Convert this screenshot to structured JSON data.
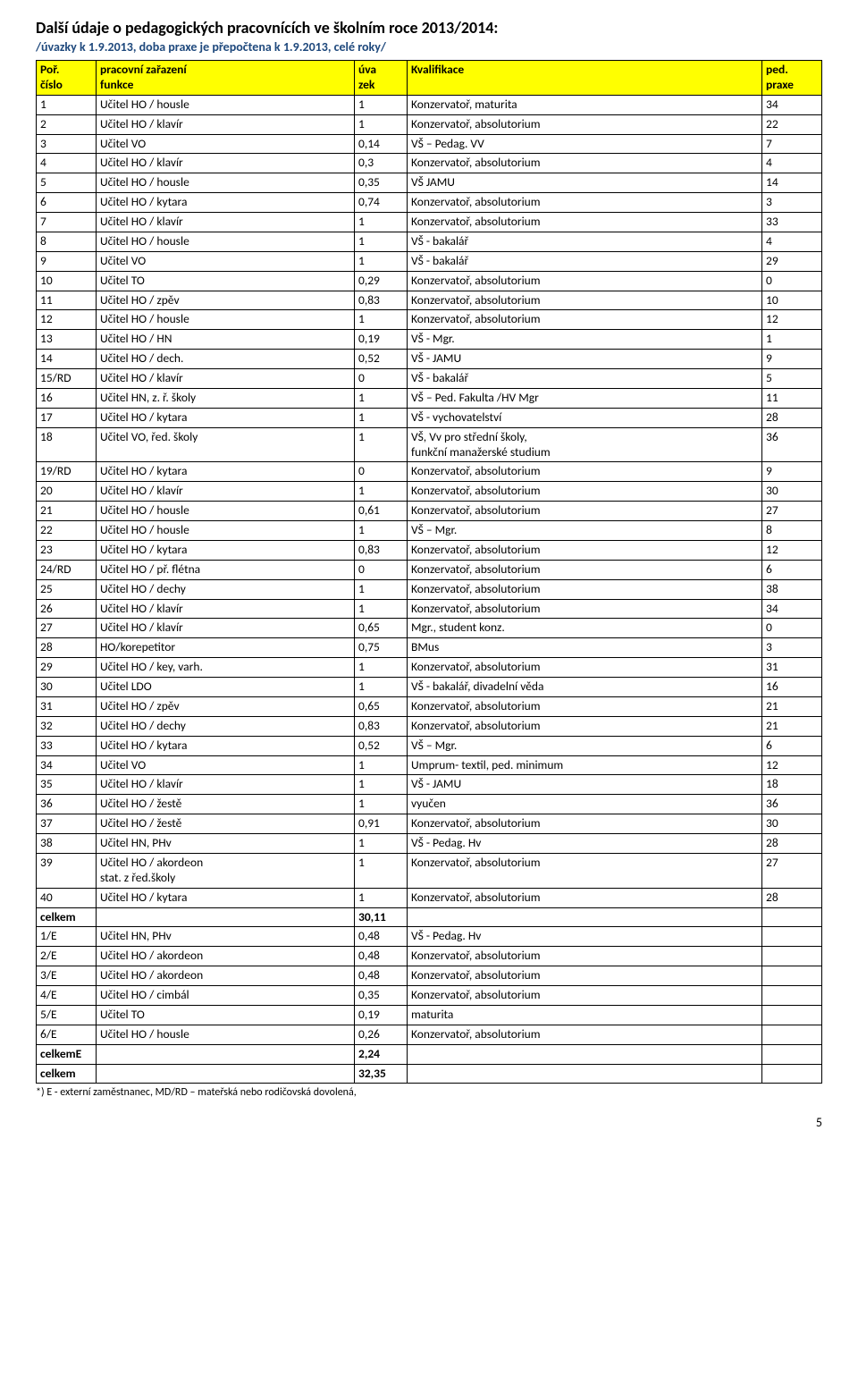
{
  "heading": "Další údaje o pedagogických pracovnících ve školním roce 2013/2014:",
  "subheading": "/úvazky k 1.9.2013, doba praxe je přepočtena k 1.9.2013, celé roky/",
  "header_bg": "#ffff00",
  "th": {
    "c1a": "Poř.",
    "c1b": "číslo",
    "c2a": "pracovní zařazení",
    "c2b": "funkce",
    "c3a": "úva",
    "c3b": "zek",
    "c4": "Kvalifikace",
    "c5a": "ped.",
    "c5b": "praxe"
  },
  "rows": [
    {
      "id": "1",
      "fn": "Učitel HO / housle",
      "uv": "1",
      "kv": "Konzervatoř, maturita",
      "pr": "34"
    },
    {
      "id": "2",
      "fn": "Učitel HO / klavír",
      "uv": "1",
      "kv": "Konzervatoř, absolutorium",
      "pr": "22"
    },
    {
      "id": "3",
      "fn": "Učitel VO",
      "uv": "0,14",
      "kv": "VŠ – Pedag. VV",
      "pr": "7"
    },
    {
      "id": "4",
      "fn": "Učitel HO / klavír",
      "uv": "0,3",
      "kv": "Konzervatoř, absolutorium",
      "pr": "4"
    },
    {
      "id": "5",
      "fn": "Učitel HO / housle",
      "uv": "0,35",
      "kv": "VŠ JAMU",
      "pr": "14"
    },
    {
      "id": "6",
      "fn": "Učitel HO / kytara",
      "uv": "0,74",
      "kv": "Konzervatoř, absolutorium",
      "pr": "3"
    },
    {
      "id": "7",
      "fn": "Učitel HO / klavír",
      "uv": "1",
      "kv": "Konzervatoř, absolutorium",
      "pr": "33"
    },
    {
      "id": "8",
      "fn": "Učitel HO / housle",
      "uv": "1",
      "kv": "VŠ - bakalář",
      "pr": "4"
    },
    {
      "id": "9",
      "fn": "Učitel VO",
      "uv": "1",
      "kv": "VŠ - bakalář",
      "pr": "29"
    },
    {
      "id": "10",
      "fn": "Učitel TO",
      "uv": "0,29",
      "kv": "Konzervatoř, absolutorium",
      "pr": "0"
    },
    {
      "id": "11",
      "fn": "Učitel HO / zpěv",
      "uv": "0,83",
      "kv": "Konzervatoř, absolutorium",
      "pr": "10"
    },
    {
      "id": "12",
      "fn": "Učitel HO / housle",
      "uv": "1",
      "kv": "Konzervatoř, absolutorium",
      "pr": "12"
    },
    {
      "id": "13",
      "fn": "Učitel HO / HN",
      "uv": "0,19",
      "kv": "VŠ - Mgr.",
      "pr": "1"
    },
    {
      "id": "14",
      "fn": "Učitel HO / dech.",
      "uv": "0,52",
      "kv": "VŠ - JAMU",
      "pr": "9"
    },
    {
      "id": "15/RD",
      "fn": "Učitel HO / klavír",
      "uv": "0",
      "kv": "VŠ - bakalář",
      "pr": "5"
    },
    {
      "id": "16",
      "fn": "Učitel HN,  z. ř. školy",
      "uv": "1",
      "kv": "VŠ – Ped. Fakulta /HV  Mgr",
      "pr": "11"
    },
    {
      "id": "17",
      "fn": "Učitel HO / kytara",
      "uv": "1",
      "kv": "VŠ - vychovatelství",
      "pr": "28"
    },
    {
      "id": "18",
      "fn": "Učitel VO,   řed. školy",
      "uv": "1",
      "kv": "VŠ,  Vv pro střední školy,\nfunkční manažerské studium",
      "pr": "36"
    },
    {
      "id": "19/RD",
      "fn": "Učitel HO / kytara",
      "uv": "0",
      "kv": "Konzervatoř, absolutorium",
      "pr": "9"
    },
    {
      "id": "20",
      "fn": "Učitel HO / klavír",
      "uv": "1",
      "kv": "Konzervatoř, absolutorium",
      "pr": "30"
    },
    {
      "id": "21",
      "fn": "Učitel HO / housle",
      "uv": "0,61",
      "kv": "Konzervatoř, absolutorium",
      "pr": "27"
    },
    {
      "id": "22",
      "fn": "Učitel HO / housle",
      "uv": "1",
      "kv": "VŠ – Mgr.",
      "pr": "8"
    },
    {
      "id": "23",
      "fn": "Učitel HO / kytara",
      "uv": "0,83",
      "kv": "Konzervatoř, absolutorium",
      "pr": "12"
    },
    {
      "id": "24/RD",
      "fn": "Učitel HO / př. flétna",
      "uv": "0",
      "kv": "Konzervatoř, absolutorium",
      "pr": "6"
    },
    {
      "id": "25",
      "fn": "Učitel HO / dechy",
      "uv": "1",
      "kv": "Konzervatoř, absolutorium",
      "pr": "38"
    },
    {
      "id": "26",
      "fn": "Učitel HO / klavír",
      "uv": "1",
      "kv": "Konzervatoř, absolutorium",
      "pr": "34"
    },
    {
      "id": "27",
      "fn": "Učitel HO / klavír",
      "uv": "0,65",
      "kv": "Mgr., student konz.",
      "pr": "0"
    },
    {
      "id": "28",
      "fn": "HO/korepetitor",
      "uv": "0,75",
      "kv": "BMus",
      "pr": "3"
    },
    {
      "id": "29",
      "fn": "Učitel HO / key, varh.",
      "uv": "1",
      "kv": "Konzervatoř, absolutorium",
      "pr": "31"
    },
    {
      "id": "30",
      "fn": "Učitel LDO",
      "uv": "1",
      "kv": "VŠ - bakalář, divadelní věda",
      "pr": "16"
    },
    {
      "id": "31",
      "fn": "Učitel HO / zpěv",
      "uv": "0,65",
      "kv": "Konzervatoř, absolutorium",
      "pr": "21"
    },
    {
      "id": "32",
      "fn": "Učitel HO / dechy",
      "uv": "0,83",
      "kv": "Konzervatoř, absolutorium",
      "pr": "21"
    },
    {
      "id": "33",
      "fn": "Učitel HO / kytara",
      "uv": "0,52",
      "kv": "VŠ – Mgr.",
      "pr": "6"
    },
    {
      "id": "34",
      "fn": "Učitel VO",
      "uv": "1",
      "kv": "Umprum- textil, ped. minimum",
      "pr": "12"
    },
    {
      "id": "35",
      "fn": "Učitel HO / klavír",
      "uv": "1",
      "kv": "VŠ - JAMU",
      "pr": "18"
    },
    {
      "id": "36",
      "fn": "Učitel HO / žestě",
      "uv": "1",
      "kv": "vyučen",
      "pr": "36"
    },
    {
      "id": "37",
      "fn": "Učitel HO / žestě",
      "uv": "0,91",
      "kv": "Konzervatoř, absolutorium",
      "pr": "30"
    },
    {
      "id": "38",
      "fn": "Učitel HN,  PHv",
      "uv": "1",
      "kv": "VŠ - Pedag. Hv",
      "pr": "28"
    },
    {
      "id": "39",
      "fn": "Učitel HO / akordeon\nstat. z řed.školy",
      "uv": "1",
      "kv": "Konzervatoř, absolutorium",
      "pr": "27"
    },
    {
      "id": "40",
      "fn": "Učitel HO / kytara",
      "uv": "1",
      "kv": "Konzervatoř, absolutorium",
      "pr": "28"
    },
    {
      "id": "celkem",
      "fn": "",
      "uv": "30,11",
      "kv": "",
      "pr": "",
      "bold": true
    },
    {
      "id": "1/E",
      "fn": "Učitel HN,  PHv",
      "uv": "0,48",
      "kv": "VŠ - Pedag. Hv",
      "pr": ""
    },
    {
      "id": "2/E",
      "fn": "Učitel HO / akordeon",
      "uv": "0,48",
      "kv": "Konzervatoř, absolutorium",
      "pr": ""
    },
    {
      "id": "3/E",
      "fn": "Učitel HO / akordeon",
      "uv": "0,48",
      "kv": "Konzervatoř, absolutorium",
      "pr": ""
    },
    {
      "id": "4/E",
      "fn": "Učitel HO / cimbál",
      "uv": "0,35",
      "kv": "Konzervatoř, absolutorium",
      "pr": ""
    },
    {
      "id": "5/E",
      "fn": "Učitel TO",
      "uv": "0,19",
      "kv": "maturita",
      "pr": ""
    },
    {
      "id": "6/E",
      "fn": "Učitel HO / housle",
      "uv": "0,26",
      "kv": "Konzervatoř, absolutorium",
      "pr": ""
    },
    {
      "id": "celkemE",
      "fn": "",
      "uv": "2,24",
      "kv": "",
      "pr": "",
      "bold": true
    },
    {
      "id": "celkem",
      "fn": "",
      "uv": "32,35",
      "kv": "",
      "pr": "",
      "bold": true
    }
  ],
  "footnote": "*) E - externí zaměstnanec, MD/RD – mateřská nebo rodičovská dovolená,",
  "pagenum": "5"
}
